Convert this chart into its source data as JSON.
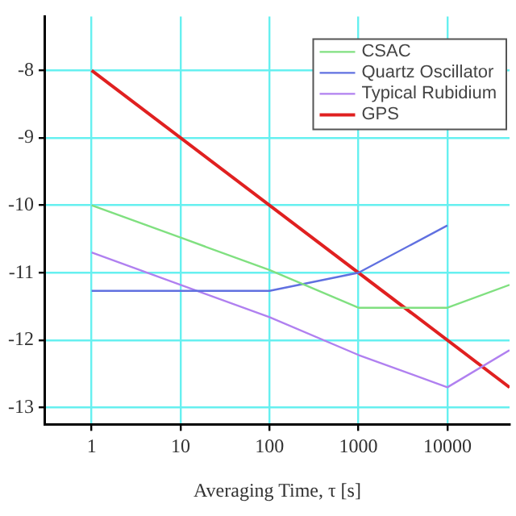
{
  "chart_data": {
    "type": "line",
    "xlabel": "Averaging Time, τ [s]",
    "log": "x",
    "grid": true,
    "legend": "top right",
    "marker": "none",
    "line_style": "solid",
    "xlim": [
      0.3,
      50000
    ],
    "xticks": [
      1,
      10,
      100,
      1000,
      10000
    ],
    "ylim": [
      -13.25,
      -7.2
    ],
    "yticks": [
      -8,
      -9,
      -10,
      -11,
      -12,
      -13
    ],
    "series": [
      {
        "name": "CSAC",
        "color": "#80e080",
        "x": [
          1,
          10,
          100,
          1000,
          10000,
          50000
        ],
        "values": [
          -10,
          -10.48,
          -10.96,
          -11.52,
          -11.52,
          -11.18
        ]
      },
      {
        "name": "Quartz Oscillator",
        "color": "#6070e0",
        "x": [
          1,
          100,
          1000,
          10000
        ],
        "values": [
          -11.27,
          -11.27,
          -11,
          -10.3
        ]
      },
      {
        "name": "Typical Rubidium",
        "color": "#b080f0",
        "x": [
          1,
          100,
          1000,
          10000,
          50000
        ],
        "values": [
          -10.7,
          -11.66,
          -12.22,
          -12.7,
          -12.15
        ]
      },
      {
        "name": "GPS",
        "color": "#e02020",
        "x": [
          1,
          50000
        ],
        "values": [
          -8,
          -12.7
        ]
      }
    ]
  }
}
